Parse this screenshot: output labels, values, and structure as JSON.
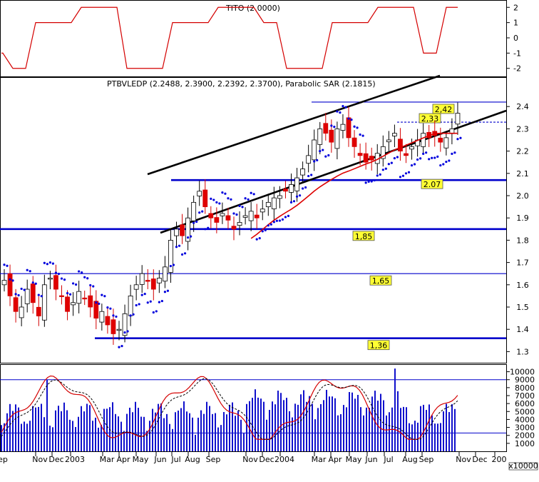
{
  "chart_data": [
    {
      "type": "line",
      "title": "TITO (2.0000)",
      "yticks": [
        2,
        1,
        0,
        -1,
        -2
      ],
      "ylim": [
        -2.2,
        2.2
      ],
      "x": [
        0,
        10,
        20,
        30,
        40,
        50,
        60,
        70,
        80,
        90,
        100,
        110,
        120,
        130,
        140,
        150,
        160,
        170,
        180,
        190,
        200
      ],
      "values": [
        -1,
        -2,
        1,
        1,
        2,
        2,
        -2,
        -2,
        1,
        1,
        2,
        2,
        1,
        -2,
        -2,
        1,
        1,
        2,
        2,
        -1,
        2
      ],
      "color": "#d40000"
    },
    {
      "type": "candlestick",
      "title": "PTBVLEDP (2.2488, 2.3900, 2.2392, 2.3700), Parabolic SAR (2.1815)",
      "yticks": [
        2.4,
        2.3,
        2.2,
        2.1,
        2.0,
        1.9,
        1.8,
        1.7,
        1.6,
        1.5,
        1.4,
        1.3
      ],
      "ytick_labels": [
        "2.4",
        "2.3",
        "2.2",
        "2.1",
        "2.0",
        "1.9",
        "1.8",
        "1.7",
        "1.6",
        "1.5",
        "1.4",
        "1.3"
      ],
      "ylim": [
        1.25,
        2.5
      ],
      "levels": [
        {
          "value": 2.42,
          "label": "2,42"
        },
        {
          "value": 2.33,
          "label": "2,33"
        },
        {
          "value": 2.07,
          "label": "2.07"
        },
        {
          "value": 1.85,
          "label": "1,85"
        },
        {
          "value": 1.65,
          "label": "1,65"
        },
        {
          "value": 1.36,
          "label": "1,36"
        }
      ],
      "close": [
        1.62,
        1.55,
        1.48,
        1.5,
        1.58,
        1.52,
        1.46,
        1.6,
        1.63,
        1.58,
        1.55,
        1.48,
        1.52,
        1.57,
        1.54,
        1.5,
        1.45,
        1.48,
        1.42,
        1.38,
        1.4,
        1.47,
        1.55,
        1.6,
        1.65,
        1.62,
        1.58,
        1.63,
        1.68,
        1.8,
        1.85,
        1.82,
        1.9,
        1.97,
        2.02,
        1.95,
        1.9,
        1.88,
        1.92,
        1.89,
        1.85,
        1.88,
        1.91,
        1.93,
        1.9,
        1.94,
        1.97,
        1.99,
        2.0,
        2.02,
        2.05,
        2.08,
        2.12,
        2.18,
        2.25,
        2.3,
        2.28,
        2.24,
        2.3,
        2.32,
        2.26,
        2.22,
        2.18,
        2.15,
        2.16,
        2.19,
        2.22,
        2.25,
        2.28,
        2.2,
        2.18,
        2.22,
        2.25,
        2.28,
        2.26,
        2.27,
        2.24,
        2.26,
        2.3,
        2.37
      ],
      "sar_color": "#0000dd",
      "ma_color": "#dd0000"
    },
    {
      "type": "bar",
      "yticks": [
        10000,
        9000,
        8000,
        7000,
        6000,
        5000,
        4000,
        3000,
        2000,
        1000
      ],
      "ylim": [
        0,
        10500
      ],
      "unit_label": "x10000",
      "volume_color": "#1010cc",
      "stoch_color": "#d40000"
    }
  ],
  "x_axis": {
    "labels": [
      "ep",
      "Nov",
      "Dec",
      "2003",
      "Mar",
      "Apr",
      "May",
      "Jun",
      "Jul",
      "Aug",
      "Sep",
      "Nov",
      "Dec",
      "2004",
      "Mar",
      "Apr",
      "May",
      "Jun",
      "Jul",
      "Aug",
      "Sep",
      "Nov",
      "Dec",
      "200"
    ]
  }
}
